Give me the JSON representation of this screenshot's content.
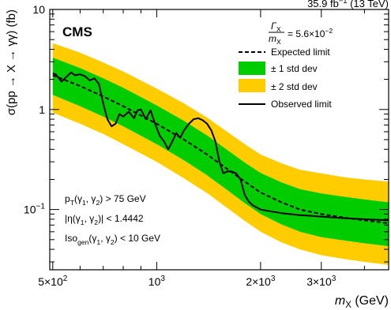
{
  "chart_data": {
    "type": "line",
    "experiment_label": "CMS",
    "lumi_label": "35.9 fb⁻¹ (13 TeV)",
    "xlabel": "m_X (GeV)",
    "ylabel": "σ(pp → X → γγ) (fb)",
    "xscale": "log",
    "yscale": "log",
    "xlim": [
      490,
      4700
    ],
    "ylim": [
      0.025,
      10
    ],
    "x_ticks": [
      {
        "value": 500,
        "label": "5×10²"
      },
      {
        "value": 1000,
        "label": "10³"
      },
      {
        "value": 2000,
        "label": "2×10³"
      },
      {
        "value": 3000,
        "label": "3×10³"
      }
    ],
    "y_ticks": [
      {
        "value": 0.1,
        "label": "10⁻¹"
      },
      {
        "value": 1,
        "label": "1"
      },
      {
        "value": 10,
        "label": "10"
      }
    ],
    "width_label": "Γ_X / m_X = 5.6×10⁻²",
    "legend": {
      "placement": "top-right",
      "entries": [
        {
          "label": "Expected limit",
          "style": "dashed",
          "color": "#000000"
        },
        {
          "label": "± 1 std dev",
          "style": "fill",
          "color": "#00cc00"
        },
        {
          "label": "± 2 std dev",
          "style": "fill",
          "color": "#ffcc00"
        },
        {
          "label": "Observed limit",
          "style": "solid",
          "color": "#000000"
        }
      ]
    },
    "selection": [
      "p_T(γ_1, γ_2) > 75 GeV",
      "|η(γ_1, γ_2)| < 1.4442",
      "Iso_gen(γ_1, γ_2) < 10 GeV"
    ],
    "x": [
      500,
      600,
      700,
      800,
      1000,
      1200,
      1400,
      1600,
      1800,
      2000,
      2300,
      2600,
      3000,
      3500,
      4000,
      4700
    ],
    "expected": [
      2.2,
      1.72,
      1.35,
      1.08,
      0.72,
      0.5,
      0.355,
      0.255,
      0.19,
      0.148,
      0.118,
      0.1,
      0.09,
      0.083,
      0.078,
      0.073
    ],
    "band_1sigma": {
      "low": [
        1.4,
        1.08,
        0.85,
        0.68,
        0.45,
        0.31,
        0.22,
        0.157,
        0.116,
        0.09,
        0.071,
        0.06,
        0.053,
        0.049,
        0.046,
        0.043
      ],
      "high": [
        3.3,
        2.6,
        2.05,
        1.65,
        1.1,
        0.77,
        0.55,
        0.395,
        0.295,
        0.232,
        0.187,
        0.16,
        0.145,
        0.134,
        0.126,
        0.118
      ]
    },
    "band_2sigma": {
      "low": [
        0.93,
        0.72,
        0.57,
        0.45,
        0.3,
        0.205,
        0.146,
        0.104,
        0.077,
        0.06,
        0.047,
        0.04,
        0.035,
        0.032,
        0.03,
        0.028
      ],
      "high": [
        4.6,
        3.7,
        2.95,
        2.4,
        1.62,
        1.15,
        0.83,
        0.6,
        0.45,
        0.355,
        0.29,
        0.25,
        0.23,
        0.21,
        0.2,
        0.19
      ]
    },
    "observed": {
      "x": [
        500,
        510,
        530,
        550,
        565,
        580,
        600,
        620,
        640,
        660,
        680,
        700,
        720,
        740,
        760,
        780,
        800,
        830,
        860,
        880,
        900,
        930,
        960,
        990,
        1020,
        1050,
        1080,
        1110,
        1140,
        1170,
        1200,
        1240,
        1280,
        1320,
        1360,
        1400,
        1440,
        1480,
        1520,
        1560,
        1600,
        1650,
        1700,
        1750,
        1800,
        1850,
        1900,
        1950,
        2000,
        2100,
        2300,
        2600,
        3000,
        3500,
        4000,
        4700
      ],
      "y": [
        2.3,
        2.25,
        1.9,
        2.15,
        2.35,
        2.2,
        2.25,
        2.15,
        1.95,
        2.05,
        1.8,
        1.15,
        0.8,
        0.68,
        0.72,
        0.9,
        0.85,
        0.95,
        0.82,
        0.98,
        1.0,
        0.8,
        0.98,
        0.72,
        0.55,
        0.48,
        0.4,
        0.48,
        0.58,
        0.52,
        0.62,
        0.72,
        0.8,
        0.82,
        0.78,
        0.72,
        0.62,
        0.48,
        0.3,
        0.23,
        0.24,
        0.24,
        0.23,
        0.2,
        0.14,
        0.12,
        0.11,
        0.105,
        0.1,
        0.097,
        0.092,
        0.088,
        0.085,
        0.082,
        0.08,
        0.078
      ]
    }
  }
}
